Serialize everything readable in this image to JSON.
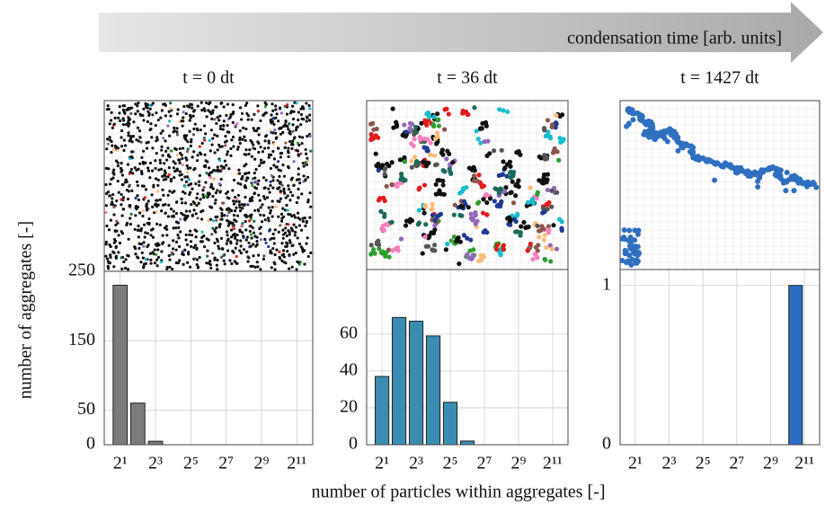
{
  "arrow_label": "condensation time [arb. units]",
  "y_label": "number of aggregates [-]",
  "x_label": "number of particles within aggregates [-]",
  "chart_data": [
    {
      "type": "bar",
      "title": "t = 0 dt",
      "color": "#7b7b7b",
      "x": [
        1,
        2,
        3
      ],
      "values": [
        230,
        60,
        5
      ],
      "xlim": [
        0.1,
        11.9
      ],
      "ylim": [
        0,
        250
      ],
      "xticks": [
        {
          "value": 1,
          "label": "2¹"
        },
        {
          "value": 3,
          "label": "2³"
        },
        {
          "value": 5,
          "label": "2⁵"
        },
        {
          "value": 7,
          "label": "2⁷"
        },
        {
          "value": 9,
          "label": "2⁹"
        },
        {
          "value": 11,
          "label": "2¹¹"
        }
      ],
      "yticks": [
        0,
        50,
        150,
        250
      ],
      "grid": true
    },
    {
      "type": "bar",
      "title": "t = 36 dt",
      "color": "#3a8db0",
      "x": [
        1,
        2,
        3,
        4,
        5,
        6
      ],
      "values": [
        37,
        69,
        67,
        59,
        23,
        2
      ],
      "xlim": [
        0.1,
        11.9
      ],
      "ylim": [
        0,
        95
      ],
      "xticks": [
        {
          "value": 1,
          "label": "2¹"
        },
        {
          "value": 3,
          "label": "2³"
        },
        {
          "value": 5,
          "label": "2⁵"
        },
        {
          "value": 7,
          "label": "2⁷"
        },
        {
          "value": 9,
          "label": "2⁹"
        },
        {
          "value": 11,
          "label": "2¹¹"
        }
      ],
      "yticks": [
        0,
        20,
        40,
        60
      ],
      "grid": true
    },
    {
      "type": "bar",
      "title": "t = 1427 dt",
      "color": "#2b6cc4",
      "x": [
        10.48
      ],
      "values": [
        1
      ],
      "xlim": [
        0.1,
        11.9
      ],
      "ylim": [
        0,
        1.1
      ],
      "xticks": [
        {
          "value": 1,
          "label": "2¹"
        },
        {
          "value": 3,
          "label": "2³"
        },
        {
          "value": 5,
          "label": "2⁵"
        },
        {
          "value": 7,
          "label": "2⁷"
        },
        {
          "value": 9,
          "label": "2⁹"
        },
        {
          "value": 11,
          "label": "2¹¹"
        }
      ],
      "yticks": [
        0,
        1
      ],
      "grid": true
    }
  ]
}
